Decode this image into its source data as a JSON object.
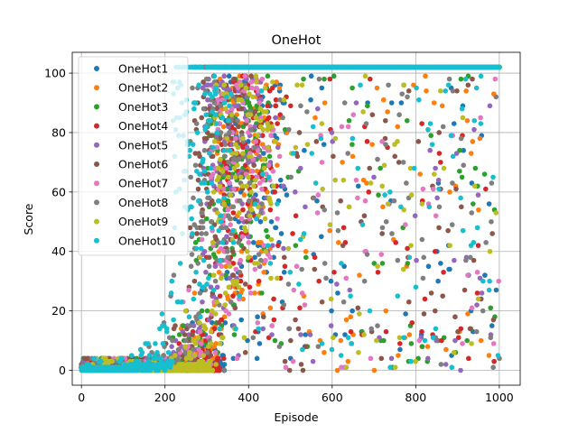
{
  "chart_data": {
    "type": "scatter",
    "title": "OneHot",
    "xlabel": "Episode",
    "ylabel": "Score",
    "xlim": [
      -22,
      1050
    ],
    "ylim": [
      -5,
      107
    ],
    "xticks": [
      0,
      200,
      400,
      600,
      800,
      1000
    ],
    "yticks": [
      0,
      20,
      40,
      60,
      80,
      100
    ],
    "grid": true,
    "legend_position": "top-left",
    "max_score": 102,
    "series": [
      {
        "name": "OneHot1",
        "color": "#1f77b4",
        "onset": 345,
        "seed": 11
      },
      {
        "name": "OneHot2",
        "color": "#ff7f0e",
        "onset": 325,
        "seed": 23
      },
      {
        "name": "OneHot3",
        "color": "#2ca02c",
        "onset": 300,
        "seed": 37
      },
      {
        "name": "OneHot4",
        "color": "#d62728",
        "onset": 330,
        "seed": 41
      },
      {
        "name": "OneHot5",
        "color": "#9467bd",
        "onset": 285,
        "seed": 53
      },
      {
        "name": "OneHot6",
        "color": "#8c564b",
        "onset": 270,
        "seed": 67
      },
      {
        "name": "OneHot7",
        "color": "#e377c2",
        "onset": 310,
        "seed": 71
      },
      {
        "name": "OneHot8",
        "color": "#7f7f7f",
        "onset": 260,
        "seed": 83
      },
      {
        "name": "OneHot9",
        "color": "#bcbd22",
        "onset": 315,
        "seed": 97
      },
      {
        "name": "OneHot10",
        "color": "#17becf",
        "onset": 215,
        "seed": 101
      }
    ]
  }
}
